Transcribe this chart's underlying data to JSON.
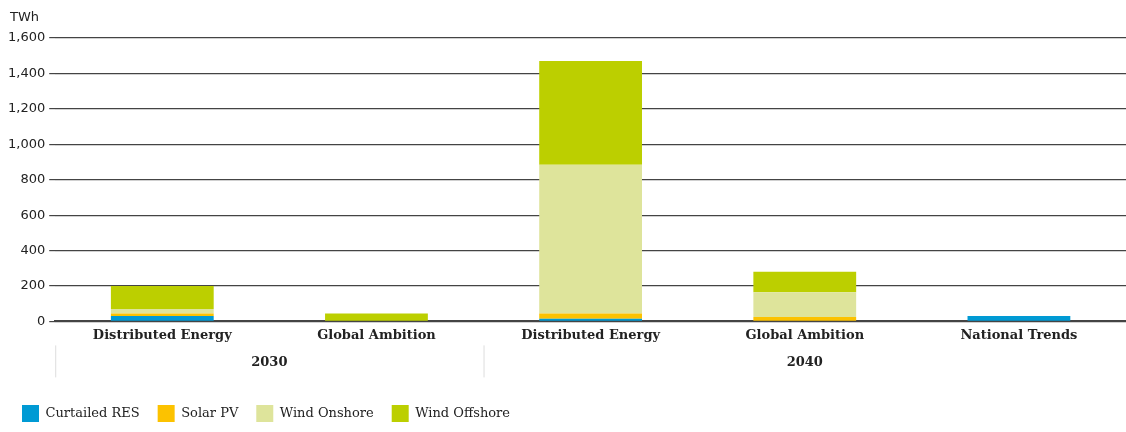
{
  "chart_data": {
    "type": "bar",
    "stacked": true,
    "ylabel": "TWh",
    "categories": [
      "Distributed Energy",
      "Global Ambition",
      "Distributed Energy",
      "Global Ambition",
      "National Trends"
    ],
    "series": [
      {
        "name": "Curtailed RES",
        "color": "#009ad4",
        "values": [
          30,
          0,
          15,
          0,
          30
        ]
      },
      {
        "name": "Solar PV",
        "color": "#fcc200",
        "values": [
          15,
          0,
          30,
          25,
          0
        ]
      },
      {
        "name": "Wind Onshore",
        "color": "#dee49b",
        "values": [
          25,
          0,
          840,
          140,
          0
        ]
      },
      {
        "name": "Wind Offshore",
        "color": "#bccf00",
        "values": [
          130,
          45,
          585,
          115,
          0
        ]
      }
    ],
    "ylim": [
      0,
      1600
    ],
    "yticks": [
      0,
      200,
      400,
      600,
      800,
      {
        "value": 1000,
        "label": "1,000"
      },
      {
        "value": 1200,
        "label": "1,200"
      },
      {
        "value": 1400,
        "label": "1,400"
      },
      {
        "value": 1600,
        "label": "1,600"
      }
    ],
    "grid": "y",
    "legend": "bottom left",
    "annotations": [
      "2030",
      "2040"
    ]
  }
}
